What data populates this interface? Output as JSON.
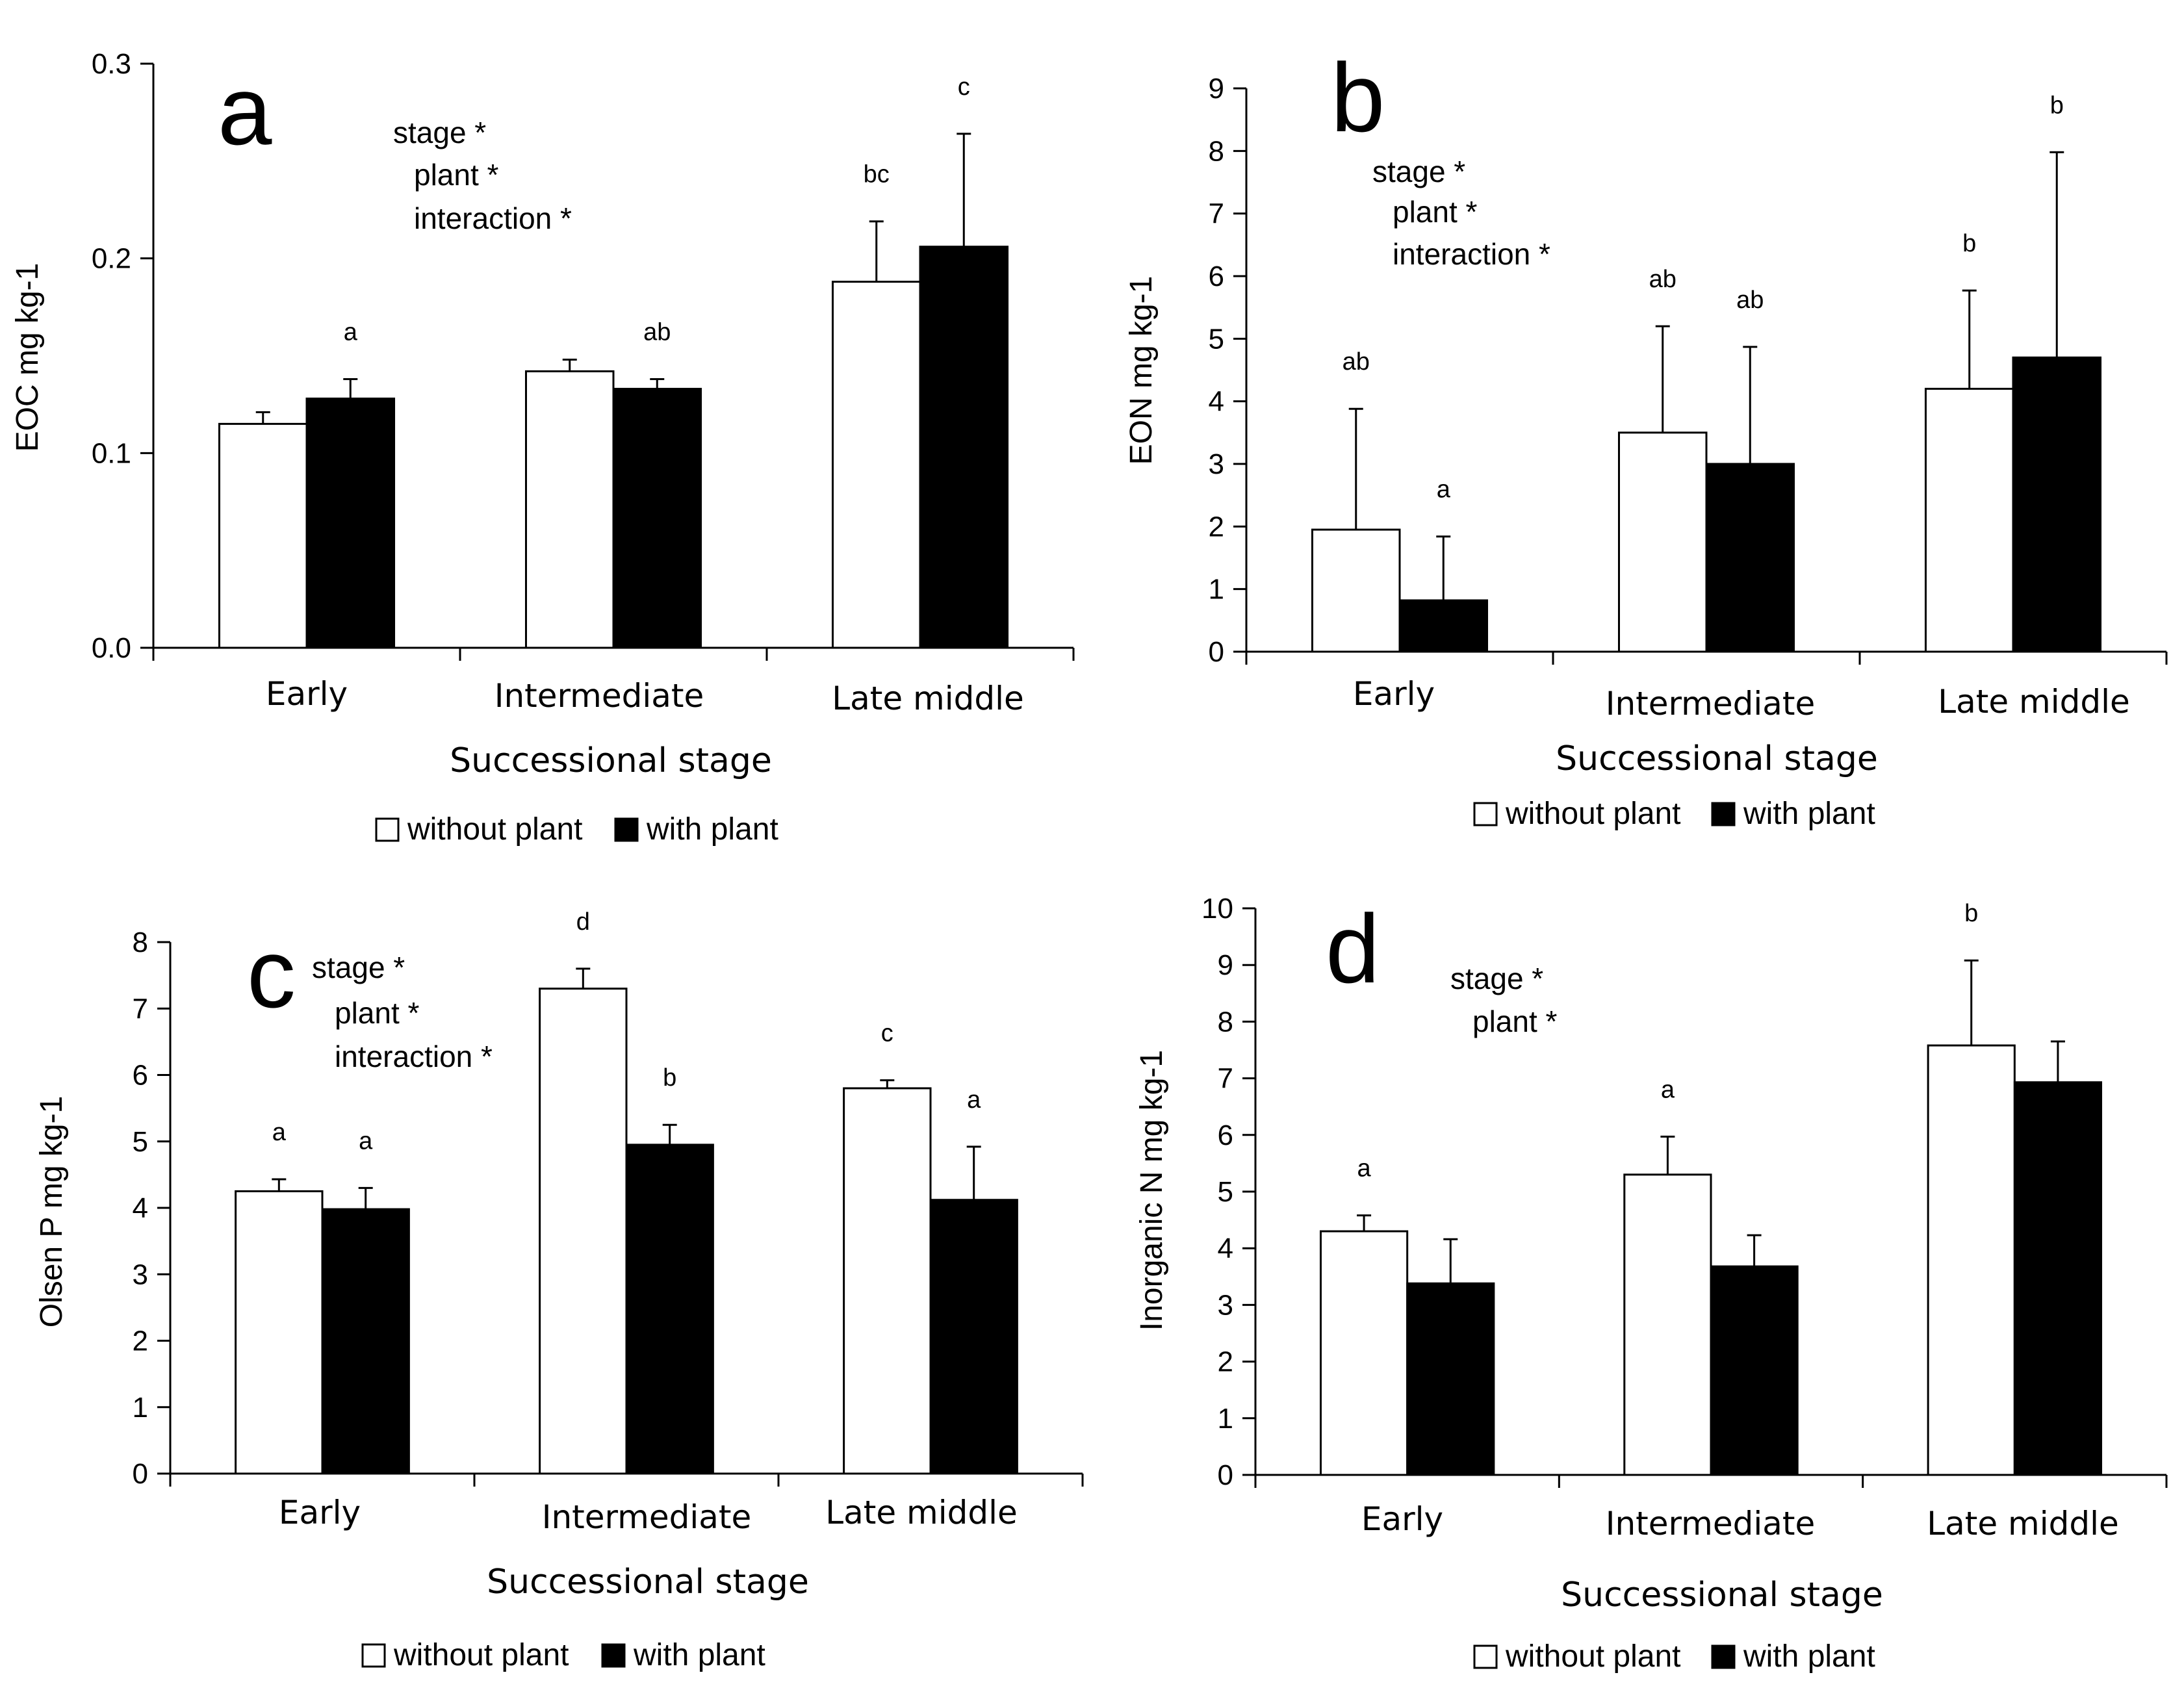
{
  "legend": {
    "without_plant": "without plant",
    "with_plant": "with plant"
  },
  "colors": {
    "without_plant": "#ffffff",
    "with_plant": "#000000",
    "axis": "#000000"
  },
  "chart_data": [
    {
      "type": "bar",
      "panel": "a",
      "categories": [
        "Early",
        "Intermediate",
        "Late middle"
      ],
      "xlabel": "Successional stage",
      "ylabel": "EOC mg kg-1",
      "ylim": [
        0,
        0.3
      ],
      "yticks": [
        "0.0",
        "0.1",
        "0.2",
        "0.3"
      ],
      "series": [
        {
          "name": "without plant",
          "values": [
            0.115,
            0.142,
            0.188
          ],
          "errors": [
            0.006,
            0.006,
            0.031
          ]
        },
        {
          "name": "with plant",
          "values": [
            0.128,
            0.133,
            0.206
          ],
          "errors": [
            0.01,
            0.005,
            0.058
          ]
        }
      ],
      "significance": [
        "stage *",
        "plant *",
        "interaction *"
      ],
      "group_labels": [
        {
          "category": 0,
          "series": 1,
          "text": "a"
        },
        {
          "category": 1,
          "series": 1,
          "text": "ab"
        },
        {
          "category": 2,
          "series": 0,
          "text": "bc"
        },
        {
          "category": 2,
          "series": 1,
          "text": "c"
        }
      ]
    },
    {
      "type": "bar",
      "panel": "b",
      "categories": [
        "Early",
        "Intermediate",
        "Late middle"
      ],
      "xlabel": "Successional stage",
      "ylabel": "EON mg kg-1",
      "ylim": [
        0,
        9
      ],
      "yticks": [
        "0",
        "1",
        "2",
        "3",
        "4",
        "5",
        "6",
        "7",
        "8",
        "9"
      ],
      "series": [
        {
          "name": "without plant",
          "values": [
            1.95,
            3.5,
            4.2
          ],
          "errors": [
            1.93,
            1.7,
            1.57
          ]
        },
        {
          "name": "with plant",
          "values": [
            0.82,
            3.0,
            4.7
          ],
          "errors": [
            1.02,
            1.87,
            3.28
          ]
        }
      ],
      "significance": [
        "stage *",
        "plant *",
        "interaction *"
      ],
      "group_labels": [
        {
          "category": 0,
          "series": 0,
          "text": "ab"
        },
        {
          "category": 0,
          "series": 1,
          "text": "a"
        },
        {
          "category": 1,
          "series": 0,
          "text": "ab"
        },
        {
          "category": 1,
          "series": 1,
          "text": "ab"
        },
        {
          "category": 2,
          "series": 0,
          "text": "b"
        },
        {
          "category": 2,
          "series": 1,
          "text": "b"
        }
      ]
    },
    {
      "type": "bar",
      "panel": "c",
      "categories": [
        "Early",
        "Intermediate",
        "Late middle"
      ],
      "xlabel": "Successional stage",
      "ylabel": "Olsen P mg kg-1",
      "ylim": [
        0,
        8
      ],
      "yticks": [
        "0",
        "1",
        "2",
        "3",
        "4",
        "5",
        "6",
        "7",
        "8"
      ],
      "series": [
        {
          "name": "without plant",
          "values": [
            4.25,
            7.3,
            5.8
          ],
          "errors": [
            0.18,
            0.3,
            0.12
          ]
        },
        {
          "name": "with plant",
          "values": [
            3.98,
            4.95,
            4.12
          ],
          "errors": [
            0.32,
            0.3,
            0.8
          ]
        }
      ],
      "significance": [
        "stage *",
        "plant *",
        "interaction *"
      ],
      "group_labels": [
        {
          "category": 0,
          "series": 0,
          "text": "a"
        },
        {
          "category": 0,
          "series": 1,
          "text": "a"
        },
        {
          "category": 1,
          "series": 0,
          "text": "d"
        },
        {
          "category": 1,
          "series": 1,
          "text": "b"
        },
        {
          "category": 2,
          "series": 0,
          "text": "c"
        },
        {
          "category": 2,
          "series": 1,
          "text": "a"
        }
      ]
    },
    {
      "type": "bar",
      "panel": "d",
      "categories": [
        "Early",
        "Intermediate",
        "Late middle"
      ],
      "xlabel": "Successional stage",
      "ylabel": "Inorganic N mg kg-1",
      "ylim": [
        0,
        10
      ],
      "yticks": [
        "0",
        "1",
        "2",
        "3",
        "4",
        "5",
        "6",
        "7",
        "8",
        "9",
        "10"
      ],
      "series": [
        {
          "name": "without plant",
          "values": [
            4.3,
            5.3,
            7.58
          ],
          "errors": [
            0.28,
            0.67,
            1.5
          ]
        },
        {
          "name": "with plant",
          "values": [
            3.38,
            3.68,
            6.93
          ],
          "errors": [
            0.78,
            0.55,
            0.72
          ]
        }
      ],
      "significance": [
        "stage *",
        "plant *"
      ],
      "group_labels": [
        {
          "category": 0,
          "series": 0,
          "text": "a"
        },
        {
          "category": 1,
          "series": 0,
          "text": "a"
        },
        {
          "category": 2,
          "series": 0,
          "text": "b"
        }
      ]
    }
  ]
}
